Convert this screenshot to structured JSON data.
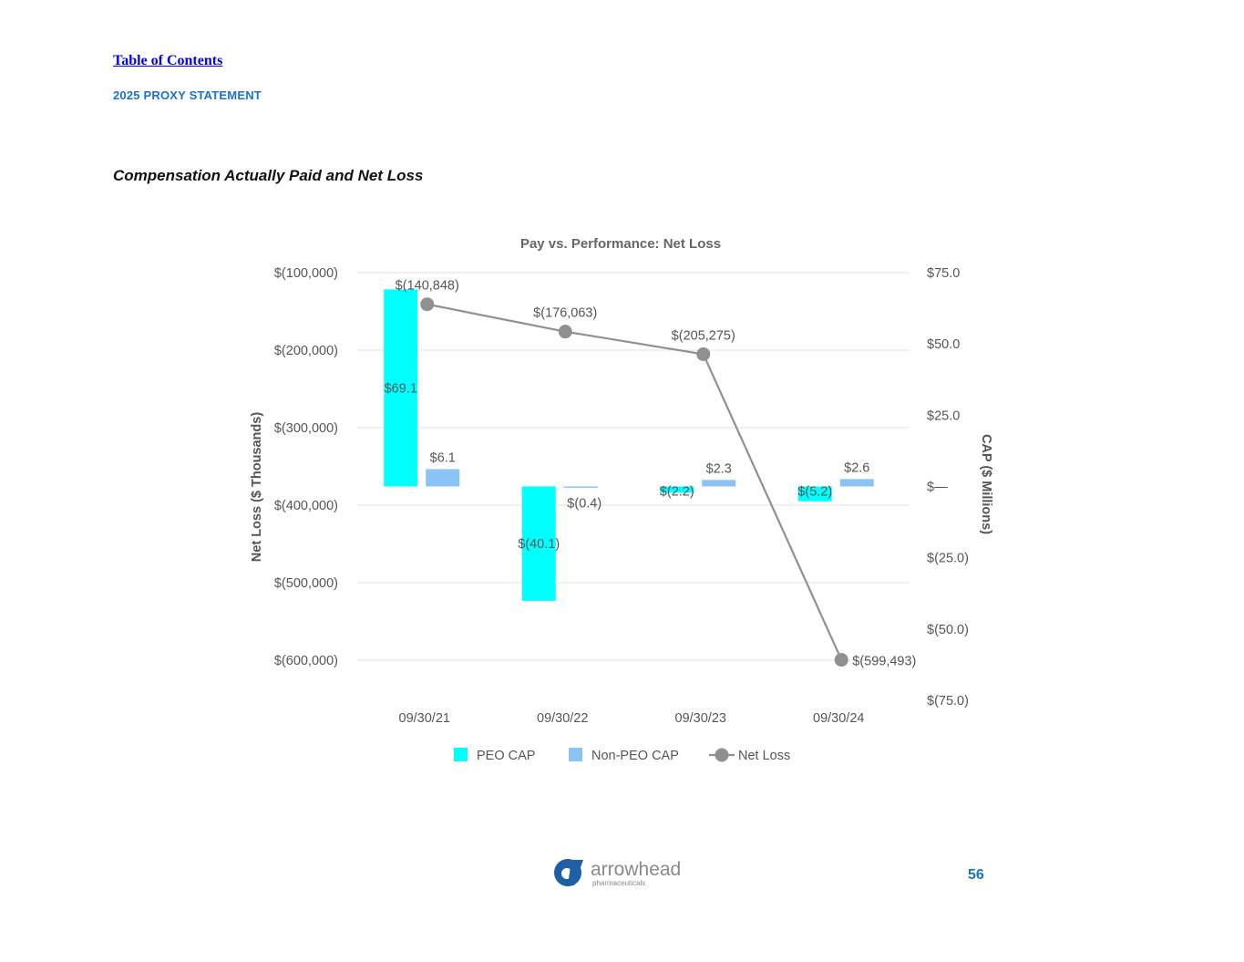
{
  "header": {
    "toc_link": "Table of Contents",
    "doc_label": "2025 PROXY STATEMENT"
  },
  "section_title": "Compensation Actually Paid and Net Loss",
  "chart_data": {
    "type": "bar",
    "title": "Pay vs. Performance: Net Loss",
    "categories": [
      "09/30/21",
      "09/30/22",
      "09/30/23",
      "09/30/24"
    ],
    "series": [
      {
        "name": "PEO CAP",
        "kind": "bar",
        "axis": "right",
        "color": "#00ffff",
        "values": [
          69.1,
          -40.1,
          -2.2,
          -5.2
        ],
        "labels": [
          "$69.1",
          "$(40.1)",
          "$(2.2)",
          "$(5.2)"
        ]
      },
      {
        "name": "Non-PEO CAP",
        "kind": "bar",
        "axis": "right",
        "color": "#89c4f4",
        "values": [
          6.1,
          -0.4,
          2.3,
          2.6
        ],
        "labels": [
          "$6.1",
          "$(0.4)",
          "$2.3",
          "$2.6"
        ]
      },
      {
        "name": "Net Loss",
        "kind": "line",
        "axis": "left",
        "color": "#909090",
        "values": [
          -140848,
          -176063,
          -205275,
          -599493
        ],
        "labels": [
          "$(140,848)",
          "$(176,063)",
          "$(205,275)",
          "$(599,493)"
        ]
      }
    ],
    "ylabel": "Net Loss ($ Thousands)",
    "ylabel_right": "CAP ($ Millions)",
    "ylim": [
      -600000,
      -100000
    ],
    "ylim_right": [
      -75,
      75
    ],
    "yticks": [
      "$(100,000)",
      "$(200,000)",
      "$(300,000)",
      "$(400,000)",
      "$(500,000)",
      "$(600,000)"
    ],
    "yticks_right": [
      "$75.0",
      "$50.0",
      "$25.0",
      "$—",
      "$(25.0)",
      "$(50.0)",
      "$(75.0)"
    ],
    "grid": true,
    "legend_position": "bottom"
  },
  "logo": {
    "name": "arrowhead",
    "tagline": "pharmaceuticals",
    "colors": {
      "primary": "#1f5fa8",
      "text": "#8a8a8a"
    }
  },
  "page_number": "56"
}
